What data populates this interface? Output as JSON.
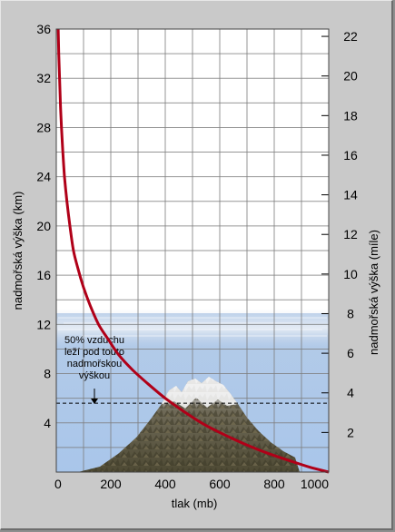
{
  "chart_data": {
    "type": "line",
    "xlabel": "tlak (mb)",
    "ylabel_left": "nadmořská výška (km)",
    "ylabel_right": "nadmořská výška (míle)",
    "xlim": [
      0,
      1000
    ],
    "ylim_left": [
      0,
      36
    ],
    "ylim_right_miles": [
      0,
      22.37
    ],
    "x_ticks": [
      0,
      200,
      400,
      600,
      800,
      1000
    ],
    "y_ticks_left": [
      4,
      8,
      12,
      16,
      20,
      24,
      28,
      32,
      36
    ],
    "y_ticks_right": [
      2,
      4,
      6,
      8,
      10,
      12,
      14,
      16,
      18,
      20,
      22
    ],
    "grid": true,
    "series": [
      {
        "color": "#b00018",
        "points": [
          [
            7,
            36
          ],
          [
            9,
            34
          ],
          [
            12,
            32
          ],
          [
            15,
            30
          ],
          [
            19,
            28
          ],
          [
            24,
            26
          ],
          [
            30,
            24
          ],
          [
            39,
            22
          ],
          [
            50,
            20
          ],
          [
            63,
            18
          ],
          [
            80,
            16.5
          ],
          [
            100,
            15
          ],
          [
            125,
            13.5
          ],
          [
            155,
            12
          ],
          [
            190,
            10.8
          ],
          [
            230,
            9.5
          ],
          [
            280,
            8.3
          ],
          [
            335,
            7.2
          ],
          [
            400,
            6
          ],
          [
            470,
            4.9
          ],
          [
            540,
            3.9
          ],
          [
            620,
            3
          ],
          [
            700,
            2.2
          ],
          [
            780,
            1.5
          ],
          [
            860,
            0.9
          ],
          [
            930,
            0.4
          ],
          [
            1000,
            0
          ]
        ]
      }
    ],
    "annotation": {
      "lines": [
        "50% vzduchu",
        "leží pod touto",
        "nadmořskou",
        "výškou"
      ],
      "value_km": 5.6
    }
  }
}
